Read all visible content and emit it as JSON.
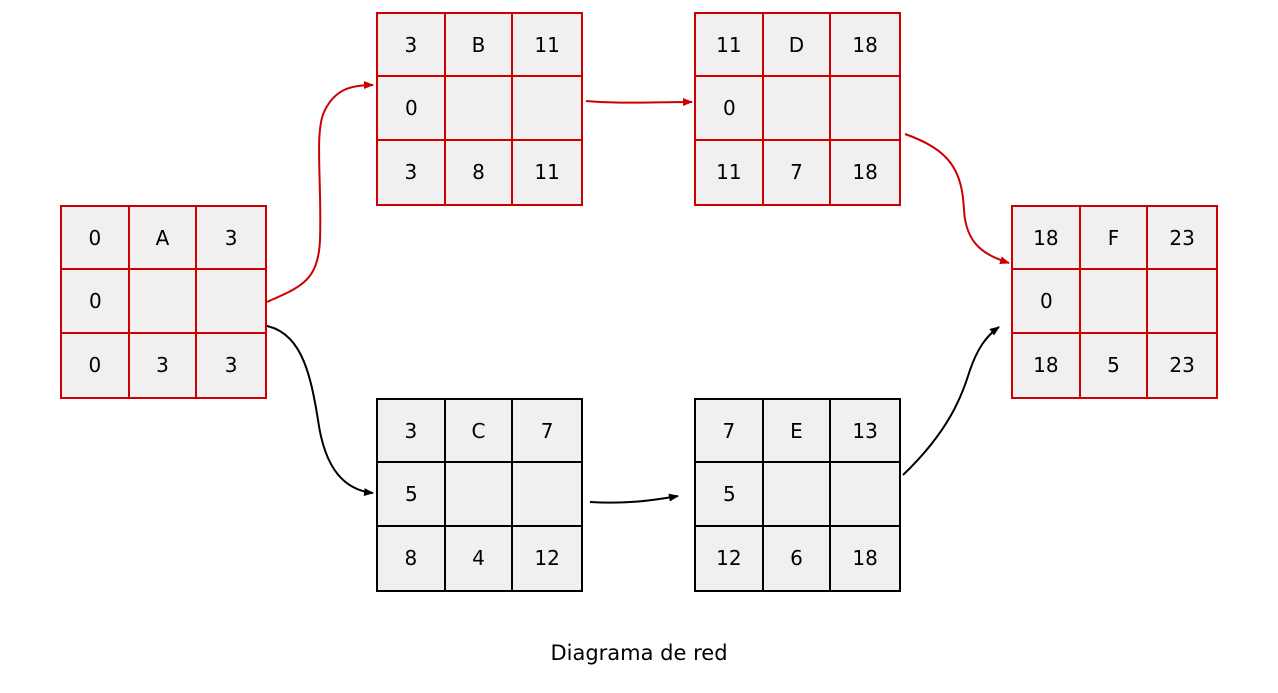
{
  "caption": "Diagrama de red",
  "colors": {
    "critical": "#cc0000",
    "normal": "#000000",
    "cell_fill": "#f0f0f0"
  },
  "nodes": [
    {
      "id": "A",
      "critical": true,
      "top": [
        "0",
        "A",
        "3"
      ],
      "middle": [
        "0",
        "",
        ""
      ],
      "bottom": [
        "0",
        "3",
        "3"
      ]
    },
    {
      "id": "B",
      "critical": true,
      "top": [
        "3",
        "B",
        "11"
      ],
      "middle": [
        "0",
        "",
        ""
      ],
      "bottom": [
        "3",
        "8",
        "11"
      ]
    },
    {
      "id": "C",
      "critical": false,
      "top": [
        "3",
        "C",
        "7"
      ],
      "middle": [
        "5",
        "",
        ""
      ],
      "bottom": [
        "8",
        "4",
        "12"
      ]
    },
    {
      "id": "D",
      "critical": true,
      "top": [
        "11",
        "D",
        "18"
      ],
      "middle": [
        "0",
        "",
        ""
      ],
      "bottom": [
        "11",
        "7",
        "18"
      ]
    },
    {
      "id": "E",
      "critical": false,
      "top": [
        "7",
        "E",
        "13"
      ],
      "middle": [
        "5",
        "",
        ""
      ],
      "bottom": [
        "12",
        "6",
        "18"
      ]
    },
    {
      "id": "F",
      "critical": true,
      "top": [
        "18",
        "F",
        "23"
      ],
      "middle": [
        "0",
        "",
        ""
      ],
      "bottom": [
        "18",
        "5",
        "23"
      ]
    }
  ],
  "edges": [
    {
      "from": "A",
      "to": "B",
      "critical": true
    },
    {
      "from": "A",
      "to": "C",
      "critical": false
    },
    {
      "from": "B",
      "to": "D",
      "critical": true
    },
    {
      "from": "C",
      "to": "E",
      "critical": false
    },
    {
      "from": "D",
      "to": "F",
      "critical": true
    },
    {
      "from": "E",
      "to": "F",
      "critical": false
    }
  ]
}
